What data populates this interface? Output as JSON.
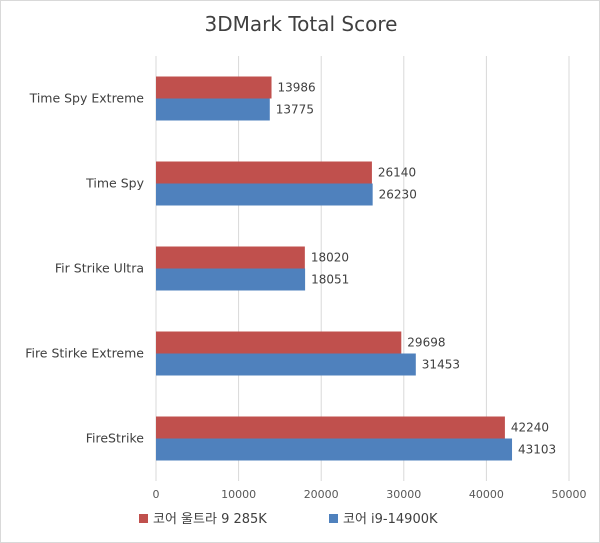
{
  "chart_data": {
    "type": "bar",
    "orientation": "horizontal",
    "title": "3DMark Total Score",
    "categories": [
      "Time Spy Extreme",
      "Time Spy",
      "Fir Strike Ultra",
      "Fire Stirke Extreme",
      "FireStrike"
    ],
    "series": [
      {
        "name": "코어 울트라 9 285K",
        "color": "#c0504d",
        "values": [
          13986,
          26140,
          18020,
          29698,
          42240
        ]
      },
      {
        "name": "코어 i9-14900K",
        "color": "#4f81bd",
        "values": [
          13775,
          26230,
          18051,
          31453,
          43103
        ]
      }
    ],
    "xlim": [
      0,
      50000
    ],
    "xticks": [
      "0",
      "10000",
      "20000",
      "30000",
      "40000",
      "50000"
    ],
    "grid": true,
    "legend_position": "bottom"
  }
}
